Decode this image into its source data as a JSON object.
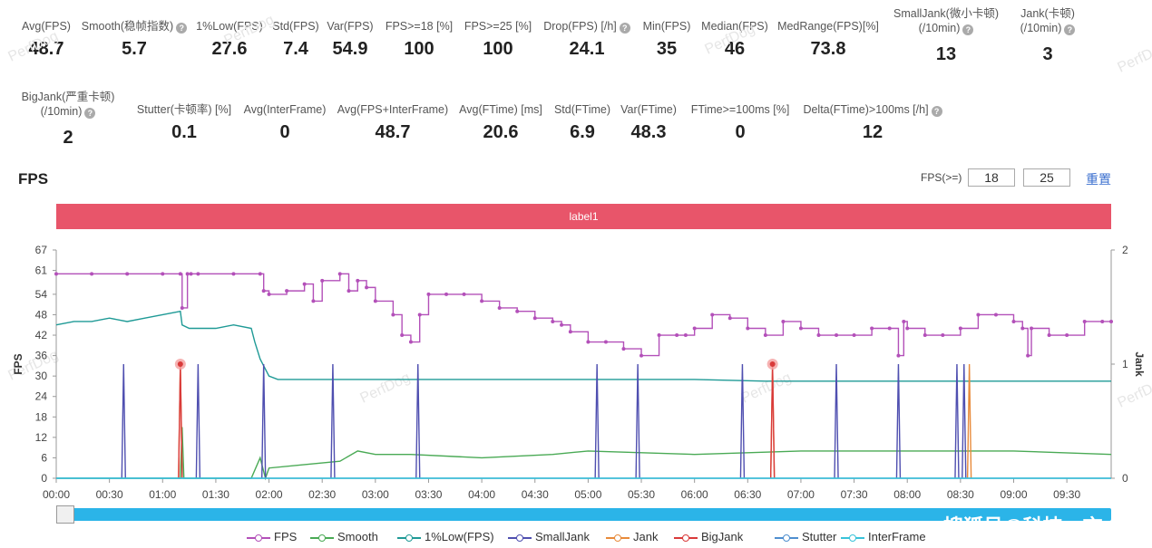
{
  "stats_row1": [
    {
      "id": "avg-fps",
      "label": "Avg(FPS)",
      "value": "48.7",
      "help": false,
      "label2": ""
    },
    {
      "id": "smooth",
      "label": "Smooth(稳帧指数)",
      "value": "5.7",
      "help": true,
      "label2": ""
    },
    {
      "id": "low1",
      "label": "1%Low(FPS)",
      "value": "27.6",
      "help": false,
      "label2": ""
    },
    {
      "id": "std-fps",
      "label": "Std(FPS)",
      "value": "7.4",
      "help": false,
      "label2": ""
    },
    {
      "id": "var-fps",
      "label": "Var(FPS)",
      "value": "54.9",
      "help": false,
      "label2": ""
    },
    {
      "id": "fps18",
      "label": "FPS>=18 [%]",
      "value": "100",
      "help": false,
      "label2": ""
    },
    {
      "id": "fps25",
      "label": "FPS>=25 [%]",
      "value": "100",
      "help": false,
      "label2": ""
    },
    {
      "id": "drop",
      "label": "Drop(FPS) [/h]",
      "value": "24.1",
      "help": true,
      "label2": ""
    },
    {
      "id": "min",
      "label": "Min(FPS)",
      "value": "35",
      "help": false,
      "label2": ""
    },
    {
      "id": "median",
      "label": "Median(FPS)",
      "value": "46",
      "help": false,
      "label2": ""
    },
    {
      "id": "medrange",
      "label": "MedRange(FPS)[%]",
      "value": "73.8",
      "help": false,
      "label2": ""
    },
    {
      "id": "smalljank",
      "label": "SmallJank(微小卡顿)",
      "value": "13",
      "help": true,
      "label2": "(/10min)"
    },
    {
      "id": "jank",
      "label": "Jank(卡顿)",
      "value": "3",
      "help": true,
      "label2": "(/10min)"
    }
  ],
  "stats_row2": [
    {
      "id": "bigjank",
      "label": "BigJank(严重卡顿)",
      "value": "2",
      "help": true,
      "label2": "(/10min)"
    },
    {
      "id": "stutter",
      "label": "Stutter(卡顿率) [%]",
      "value": "0.1",
      "help": false,
      "label2": ""
    },
    {
      "id": "avg-interframe",
      "label": "Avg(InterFrame)",
      "value": "0",
      "help": false,
      "label2": ""
    },
    {
      "id": "avg-fps-interframe",
      "label": "Avg(FPS+InterFrame)",
      "value": "48.7",
      "help": false,
      "label2": ""
    },
    {
      "id": "avg-ftime",
      "label": "Avg(FTime) [ms]",
      "value": "20.6",
      "help": false,
      "label2": ""
    },
    {
      "id": "std-ftime",
      "label": "Std(FTime)",
      "value": "6.9",
      "help": false,
      "label2": ""
    },
    {
      "id": "var-ftime",
      "label": "Var(FTime)",
      "value": "48.3",
      "help": false,
      "label2": ""
    },
    {
      "id": "ftime100",
      "label": "FTime>=100ms [%]",
      "value": "0",
      "help": false,
      "label2": ""
    },
    {
      "id": "delta-ftime",
      "label": "Delta(FTime)>100ms [/h]",
      "value": "12",
      "help": true,
      "label2": ""
    }
  ],
  "chart_title": "FPS",
  "threshold_label": "FPS(>=)",
  "threshold_values": [
    "18",
    "25"
  ],
  "reset_label": "重置",
  "label_bar_text": "label1",
  "watermarks": [
    "PerfDog",
    "PerfDog",
    "PerfDog",
    "PerfDog",
    "PerfDog",
    "PerfDog",
    "PerfDog",
    "PerfDog"
  ],
  "source_watermark": "搜狐号@科技一言",
  "colors": {
    "FPS": "#b350b9",
    "Smooth": "#4aaa55",
    "1%Low(FPS)": "#1f9a96",
    "SmallJank": "#4f4fb0",
    "Jank": "#e88a3a",
    "BigJank": "#d93a3a",
    "Stutter": "#4f8fcf",
    "InterFrame": "#39c3d9",
    "label_bar": "#e8556a",
    "slider": "#2bb4e8",
    "reset_link": "#3b6fcf"
  },
  "chart_data": {
    "type": "line",
    "title": "FPS",
    "ylabel": "FPS",
    "ylabel_right": "Jank",
    "ylim": [
      0,
      67
    ],
    "ylim_right": [
      0,
      2
    ],
    "yticks": [
      0,
      6,
      12,
      18,
      24,
      30,
      36,
      42,
      48,
      54,
      61,
      67
    ],
    "yticks_right": [
      0,
      1,
      2
    ],
    "xlim_min": [
      0,
      595
    ],
    "xticks": [
      "00:00",
      "00:30",
      "01:00",
      "01:30",
      "02:00",
      "02:30",
      "03:00",
      "03:30",
      "04:00",
      "04:30",
      "05:00",
      "05:30",
      "06:00",
      "06:30",
      "07:00",
      "07:30",
      "08:00",
      "08:30",
      "09:00",
      "09:30"
    ],
    "legend": [
      "FPS",
      "Smooth",
      "1%Low(FPS)",
      "SmallJank",
      "Jank",
      "BigJank",
      "Stutter",
      "InterFrame"
    ],
    "legend_position": "bottom",
    "series": [
      {
        "name": "FPS",
        "axis": "left",
        "x": [
          0,
          20,
          40,
          60,
          70,
          71,
          74,
          76,
          80,
          100,
          115,
          117,
          120,
          130,
          140,
          145,
          150,
          160,
          165,
          170,
          175,
          180,
          190,
          195,
          200,
          205,
          210,
          220,
          230,
          240,
          250,
          260,
          270,
          280,
          285,
          290,
          300,
          310,
          320,
          330,
          340,
          350,
          355,
          360,
          370,
          380,
          390,
          400,
          410,
          420,
          430,
          440,
          450,
          460,
          470,
          475,
          478,
          480,
          490,
          500,
          510,
          520,
          530,
          540,
          545,
          548,
          550,
          560,
          570,
          580,
          590,
          595
        ],
        "values": [
          60,
          60,
          60,
          60,
          60,
          50,
          60,
          60,
          60,
          60,
          60,
          55,
          54,
          55,
          57,
          52,
          58,
          60,
          55,
          58,
          56,
          52,
          48,
          42,
          40,
          48,
          54,
          54,
          54,
          52,
          50,
          49,
          47,
          46,
          45,
          43,
          40,
          40,
          38,
          36,
          42,
          42,
          42,
          44,
          48,
          47,
          44,
          42,
          46,
          44,
          42,
          42,
          42,
          44,
          44,
          36,
          46,
          44,
          42,
          42,
          44,
          48,
          48,
          46,
          44,
          36,
          44,
          42,
          42,
          46,
          46,
          46
        ]
      },
      {
        "name": "Smooth",
        "axis": "left",
        "x": [
          0,
          60,
          70,
          71,
          72,
          80,
          100,
          110,
          115,
          118,
          120,
          140,
          160,
          170,
          180,
          200,
          240,
          280,
          300,
          360,
          420,
          480,
          540,
          595
        ],
        "values": [
          0,
          0,
          0,
          15,
          0,
          0,
          0,
          0,
          6,
          0,
          3,
          4,
          5,
          8,
          7,
          7,
          6,
          7,
          8,
          7,
          8,
          8,
          8,
          7
        ]
      },
      {
        "name": "1%Low(FPS)",
        "axis": "left",
        "x": [
          0,
          10,
          20,
          30,
          40,
          50,
          60,
          70,
          71,
          75,
          80,
          90,
          100,
          110,
          112,
          115,
          120,
          125,
          130,
          140,
          160,
          200,
          240,
          280,
          320,
          360,
          400,
          440,
          480,
          520,
          560,
          595
        ],
        "values": [
          45,
          46,
          46,
          47,
          46,
          47,
          48,
          49,
          45,
          44,
          44,
          44,
          45,
          44,
          40,
          35,
          30,
          29,
          29,
          29,
          29,
          29,
          29,
          29,
          29,
          29,
          28.5,
          28.5,
          28.5,
          28.5,
          28.5,
          28.5
        ]
      },
      {
        "name": "SmallJank",
        "axis": "right",
        "spikes": [
          38,
          80,
          117,
          156,
          204,
          305,
          328,
          387,
          440,
          475,
          508,
          512
        ],
        "value": 1
      },
      {
        "name": "Jank",
        "axis": "right",
        "spikes": [
          70,
          404,
          515
        ],
        "value": 1
      },
      {
        "name": "BigJank",
        "axis": "right",
        "spikes": [
          70,
          404
        ],
        "value": 1
      },
      {
        "name": "Stutter",
        "axis": "left",
        "x": [
          0,
          595
        ],
        "values": [
          0,
          0
        ]
      },
      {
        "name": "InterFrame",
        "axis": "left",
        "x": [
          0,
          595
        ],
        "values": [
          0,
          0
        ]
      }
    ]
  }
}
